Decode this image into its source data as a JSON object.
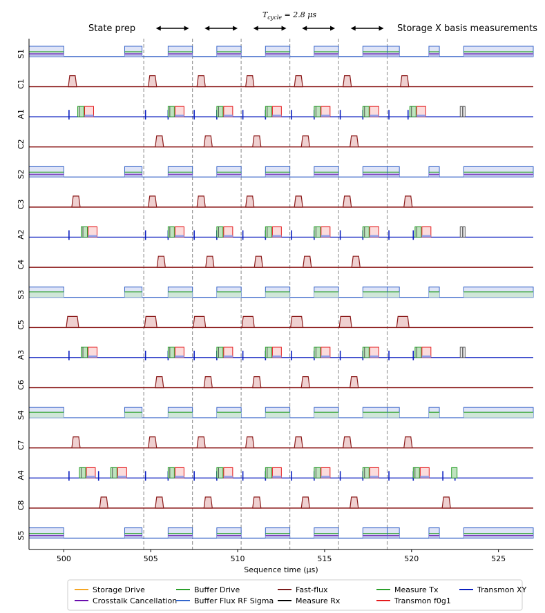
{
  "chart_data": {
    "type": "timeline",
    "xlabel": "Sequence time (μs)",
    "xlim": [
      498,
      527
    ],
    "xticks": [
      500,
      505,
      510,
      515,
      520,
      525
    ],
    "annotations": {
      "left": "State prep",
      "right": "Storage X basis measurements",
      "cycle_prefix": "T",
      "cycle_sub": "cycle",
      "cycle_value": " = 2.8 μs"
    },
    "dividers": [
      504.6,
      507.4,
      510.2,
      513.0,
      515.8,
      518.6
    ],
    "arrows": [
      [
        505.3,
        507.2
      ],
      [
        508.1,
        510.0
      ],
      [
        510.9,
        512.8
      ],
      [
        513.7,
        515.6
      ],
      [
        516.5,
        518.4
      ]
    ],
    "rows": [
      "S1",
      "C1",
      "A1",
      "C2",
      "S2",
      "C3",
      "A2",
      "C4",
      "S3",
      "C5",
      "A3",
      "C6",
      "S4",
      "C7",
      "A4",
      "C8",
      "S5"
    ],
    "storage": {
      "pulses": [
        [
          498,
          500
        ],
        [
          503.5,
          504.5
        ],
        [
          506,
          507.4
        ],
        [
          508.8,
          510.2
        ],
        [
          511.6,
          513.0
        ],
        [
          514.4,
          515.8
        ],
        [
          517.2,
          518.6
        ],
        [
          518.6,
          519.3
        ],
        [
          521.0,
          521.6
        ],
        [
          523,
          527
        ]
      ]
    },
    "fastflux": {
      "C1": [
        500.5,
        505.1,
        507.9,
        510.7,
        513.5,
        516.3,
        519.6
      ],
      "C2": [
        505.5,
        508.3,
        511.1,
        513.9,
        516.7
      ],
      "C3": [
        500.7,
        505.1,
        507.9,
        510.7,
        513.5,
        516.3,
        519.8
      ],
      "C4": [
        505.6,
        508.4,
        511.2,
        514.0,
        516.8
      ],
      "C5": [
        500.5,
        505.0,
        507.8,
        510.6,
        513.4,
        516.2,
        519.5
      ],
      "C6": [
        505.5,
        508.3,
        511.1,
        513.9,
        516.7
      ],
      "C7": [
        500.7,
        505.1,
        507.9,
        510.7,
        513.5,
        516.3,
        519.8
      ],
      "C8": [
        502.3,
        505.5,
        508.3,
        511.1,
        513.9,
        516.7,
        522.0
      ]
    },
    "ancilla": {
      "A1": {
        "xy": [
          500.3,
          504.7,
          506.0,
          507.5,
          508.8,
          510.3,
          511.6,
          513.1,
          514.4,
          515.9,
          517.2,
          518.7,
          519.8
        ],
        "meas": [
          500.8,
          506.0,
          508.8,
          511.6,
          514.4,
          517.2,
          519.9
        ],
        "rx": [
          522.8
        ]
      },
      "A2": {
        "xy": [
          500.3,
          504.7,
          506.0,
          507.5,
          508.8,
          510.3,
          511.6,
          513.1,
          514.4,
          515.9,
          517.2,
          518.7,
          520.1
        ],
        "meas": [
          501.0,
          506.0,
          508.8,
          511.6,
          514.4,
          517.2,
          520.2
        ],
        "rx": [
          522.8
        ]
      },
      "A3": {
        "xy": [
          500.3,
          504.7,
          506.0,
          507.5,
          508.8,
          510.3,
          511.6,
          513.1,
          514.4,
          515.9,
          517.2,
          518.7,
          520.1
        ],
        "meas": [
          501.0,
          506.0,
          508.8,
          511.6,
          514.4,
          517.2,
          520.2
        ],
        "rx": [
          522.8
        ]
      },
      "A4": {
        "xy": [
          500.3,
          502.0,
          504.7,
          506.0,
          507.5,
          508.8,
          510.3,
          511.6,
          513.1,
          514.4,
          515.9,
          517.2,
          518.7,
          520.1,
          521.8,
          522.5
        ],
        "meas": [
          500.9,
          502.7,
          506.0,
          508.8,
          511.6,
          514.4,
          517.2,
          520.1
        ],
        "rx": [],
        "extra_green": [
          522.3
        ]
      }
    },
    "legend": [
      {
        "name": "Storage Drive",
        "color": "#f5a623"
      },
      {
        "name": "Buffer Drive",
        "color": "#2ca02c"
      },
      {
        "name": "Fast-flux",
        "color": "#7b1c1c"
      },
      {
        "name": "Measure Tx",
        "color": "#2ca02c"
      },
      {
        "name": "Transmon XY",
        "color": "#0b1fbf"
      },
      {
        "name": "Crosstalk Cancellation",
        "color": "#6a0dad"
      },
      {
        "name": "Buffer Flux RF Sigma",
        "color": "#3366cc"
      },
      {
        "name": "Measure Rx",
        "color": "#000000"
      },
      {
        "name": "Transmon f0g1",
        "color": "#e41a1c"
      }
    ],
    "colors": {
      "storage_line": "#3a66c8",
      "storage_fill": "#dfe4f7",
      "buffer_green": "#2ca02c",
      "crosstalk": "#6a0dad",
      "fastflux": "#8b1a1a",
      "fastflux_fill": "#efd0d0",
      "xy": "#0b1fbf",
      "measure_fill": "#bfe3bf",
      "f0g1": "#e41a1c",
      "f0g1_fill": "#fbdcdc",
      "rx": "#555555",
      "divider": "#9a9a9a",
      "axis": "#000000"
    }
  }
}
